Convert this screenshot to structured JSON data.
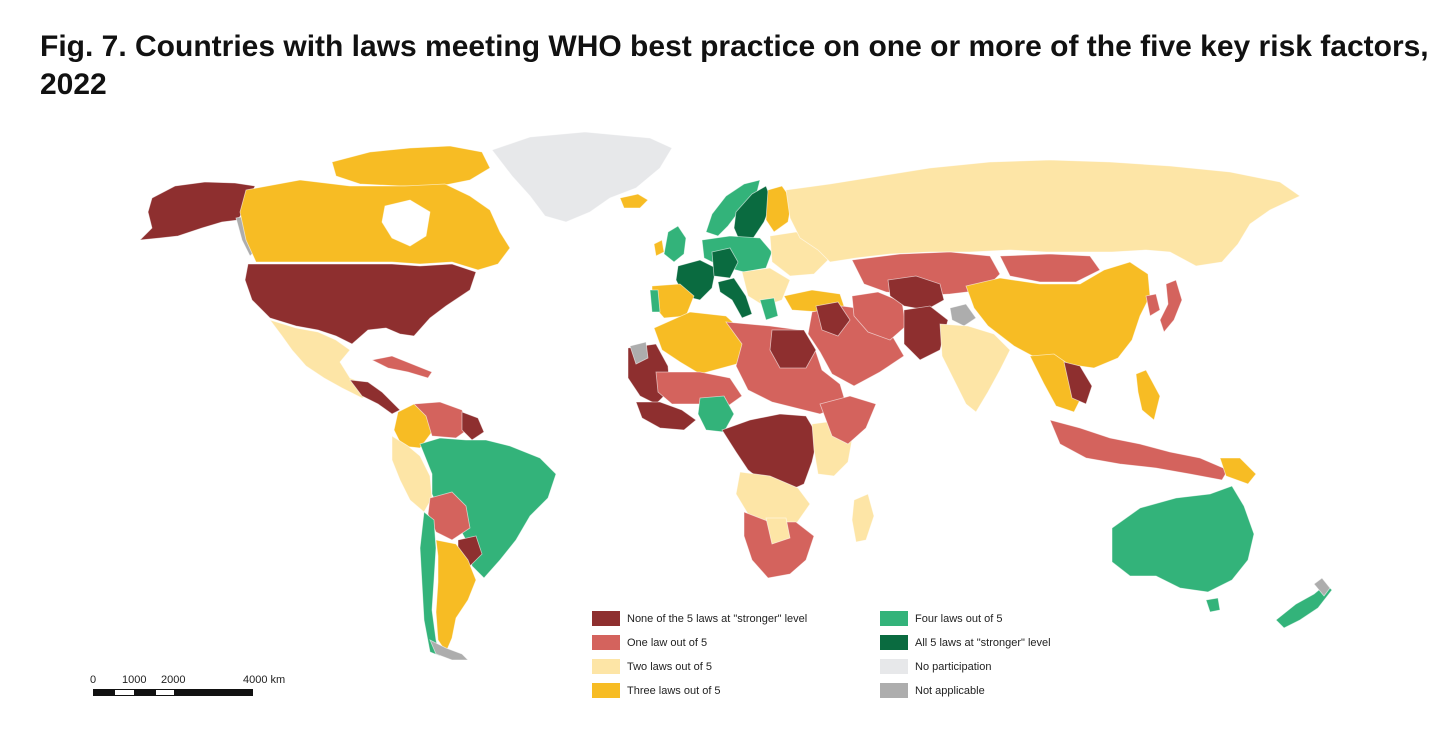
{
  "title": "Fig. 7. Countries with laws meeting WHO best practice on one or more of the five key risk factors, 2022",
  "colors": {
    "none": "#8e2f2f",
    "one": "#d4635d",
    "two": "#fde5a6",
    "three": "#f7bc24",
    "four": "#33b37a",
    "all": "#0a6b40",
    "no_participation": "#e7e8ea",
    "not_applicable": "#adadad"
  },
  "legend": [
    {
      "key": "none",
      "label": "None of the 5 laws at \"stronger\" level"
    },
    {
      "key": "one",
      "label": "One law out of 5"
    },
    {
      "key": "two",
      "label": "Two laws out of 5"
    },
    {
      "key": "three",
      "label": "Three laws out of 5"
    },
    {
      "key": "four",
      "label": "Four laws out of 5"
    },
    {
      "key": "all",
      "label": "All 5 laws at \"stronger\" level"
    },
    {
      "key": "no_participation",
      "label": "No participation"
    },
    {
      "key": "not_applicable",
      "label": "Not applicable"
    }
  ],
  "scale_bar": {
    "labels": [
      "0",
      "1000",
      "2000",
      "4000 km"
    ]
  }
}
